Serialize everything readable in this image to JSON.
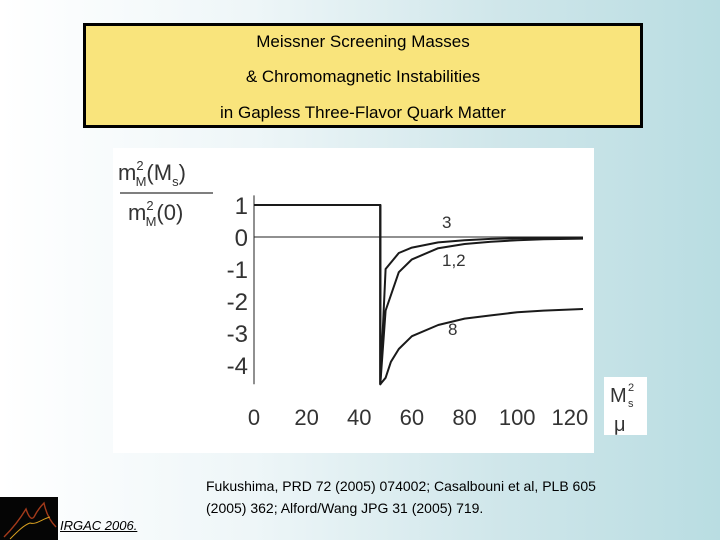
{
  "title": {
    "line1": "Meissner Screening Masses",
    "line2": "& Chromomagnetic Instabilities",
    "line3": "in Gapless Three-Flavor Quark Matter"
  },
  "chart_data": {
    "type": "line",
    "ylabel_numerator": "m²_M(M_s)",
    "ylabel_denominator": "m²_M(0)",
    "xlabel": "M²_s / μ",
    "xlim": [
      0,
      125
    ],
    "ylim": [
      -4.6,
      1.3
    ],
    "y_ticks": [
      "1",
      "0",
      "-1",
      "-2",
      "-3",
      "-4"
    ],
    "x_ticks": [
      "0",
      "20",
      "40",
      "60",
      "80",
      "100",
      "120"
    ],
    "grid": false,
    "series": [
      {
        "name": "3",
        "x": [
          0,
          48,
          48,
          50,
          55,
          60,
          70,
          80,
          90,
          100,
          110,
          125
        ],
        "y": [
          1,
          1,
          -4.6,
          -1.0,
          -0.5,
          -0.33,
          -0.17,
          -0.1,
          -0.06,
          -0.04,
          -0.03,
          -0.02
        ]
      },
      {
        "name": "1,2",
        "x": [
          0,
          48,
          48,
          50,
          55,
          60,
          70,
          80,
          90,
          100,
          110,
          125
        ],
        "y": [
          1,
          1,
          -4.6,
          -2.3,
          -1.1,
          -0.7,
          -0.35,
          -0.22,
          -0.15,
          -0.1,
          -0.07,
          -0.05
        ]
      },
      {
        "name": "8",
        "x": [
          0,
          48,
          48,
          50,
          52,
          55,
          60,
          70,
          80,
          90,
          100,
          110,
          125
        ],
        "y": [
          1,
          1,
          -4.6,
          -4.4,
          -3.9,
          -3.5,
          -3.1,
          -2.75,
          -2.55,
          -2.45,
          -2.35,
          -2.3,
          -2.25
        ]
      }
    ]
  },
  "xunit": {
    "top": "M",
    "top_sup": "2",
    "top_sub": "s",
    "bottom": "μ"
  },
  "reference": {
    "line1": "Fukushima, PRD 72 (2005) 074002; Casalbouni et al, PLB 605",
    "line2": "(2005) 362; Alford/Wang JPG 31 (2005) 719."
  },
  "conference": "IRGAC 2006.",
  "colors": {
    "title_bg": "#f9e47c",
    "plot_bg": "#ffffff",
    "line": "#1a1a1a"
  }
}
